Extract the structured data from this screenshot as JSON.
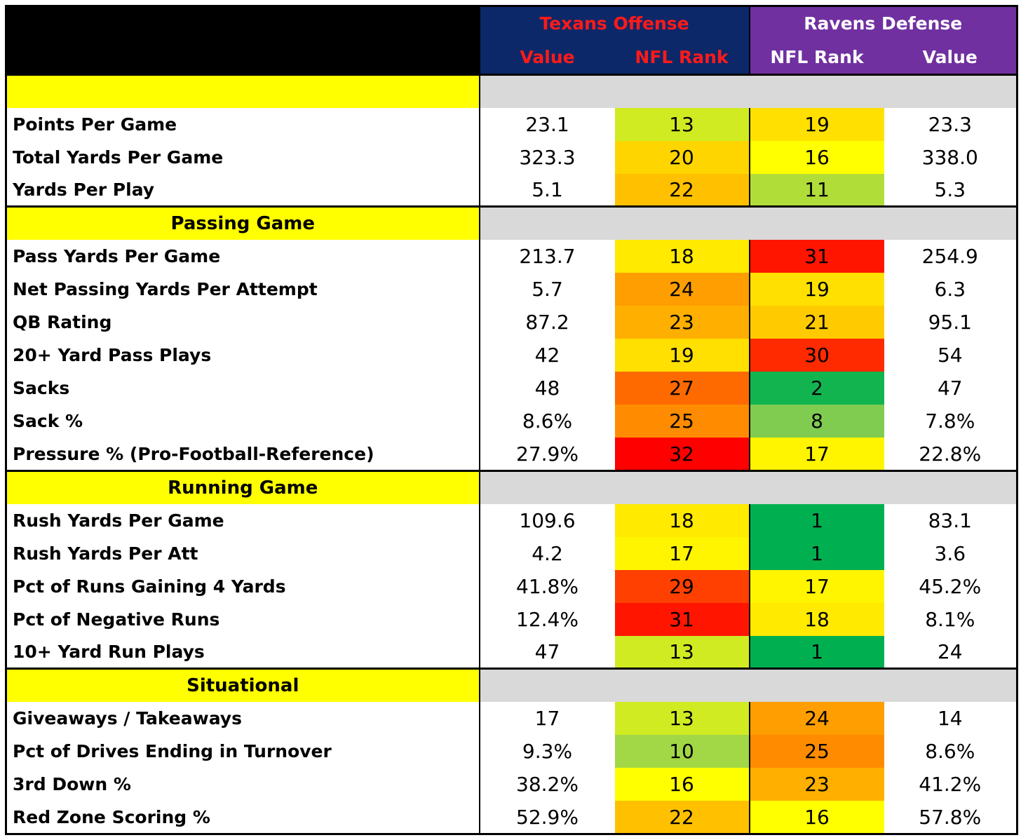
{
  "header": {
    "offense_title": "Texans Offense",
    "defense_title": "Ravens Defense",
    "offense_col1": "Value",
    "offense_col2": "NFL Rank",
    "defense_col1": "NFL Rank",
    "defense_col2": "Value"
  },
  "colors": {
    "header_black": "#000000",
    "offense_header_bg": "#0d2868",
    "offense_header_text": "#ff1a1a",
    "defense_header_bg": "#7030a0",
    "defense_header_text": "#ffffff",
    "section_yellow": "#ffff00",
    "section_gray": "#d9d9d9"
  },
  "chart_data": {
    "type": "table",
    "rank_color_scale": {
      "description": "rank 1 green → rank 32 red",
      "stops": [
        {
          "rank": 1,
          "color": "#00b050"
        },
        {
          "rank": 9,
          "color": "#92d050"
        },
        {
          "rank": 16,
          "color": "#ffff00"
        },
        {
          "rank": 22,
          "color": "#ffc000"
        },
        {
          "rank": 27,
          "color": "#ff6a00"
        },
        {
          "rank": 32,
          "color": "#ff0000"
        }
      ]
    },
    "sections": [
      {
        "title": "",
        "rows": [
          {
            "label": "Points Per Game",
            "off_value": "23.1",
            "off_rank": 13,
            "def_rank": 19,
            "def_value": "23.3"
          },
          {
            "label": "Total Yards Per Game",
            "off_value": "323.3",
            "off_rank": 20,
            "def_rank": 16,
            "def_value": "338.0"
          },
          {
            "label": "Yards Per Play",
            "off_value": "5.1",
            "off_rank": 22,
            "def_rank": 11,
            "def_value": "5.3"
          }
        ]
      },
      {
        "title": "Passing Game",
        "rows": [
          {
            "label": "Pass Yards Per Game",
            "off_value": "213.7",
            "off_rank": 18,
            "def_rank": 31,
            "def_value": "254.9"
          },
          {
            "label": "Net Passing Yards Per Attempt",
            "off_value": "5.7",
            "off_rank": 24,
            "def_rank": 19,
            "def_value": "6.3"
          },
          {
            "label": "QB Rating",
            "off_value": "87.2",
            "off_rank": 23,
            "def_rank": 21,
            "def_value": "95.1"
          },
          {
            "label": "20+ Yard Pass Plays",
            "off_value": "42",
            "off_rank": 19,
            "def_rank": 30,
            "def_value": "54"
          },
          {
            "label": "Sacks",
            "off_value": "48",
            "off_rank": 27,
            "def_rank": 2,
            "def_value": "47"
          },
          {
            "label": "Sack %",
            "off_value": "8.6%",
            "off_rank": 25,
            "def_rank": 8,
            "def_value": "7.8%"
          },
          {
            "label": "Pressure % (Pro-Football-Reference)",
            "off_value": "27.9%",
            "off_rank": 32,
            "def_rank": 17,
            "def_value": "22.8%"
          }
        ]
      },
      {
        "title": "Running Game",
        "rows": [
          {
            "label": "Rush Yards Per Game",
            "off_value": "109.6",
            "off_rank": 18,
            "def_rank": 1,
            "def_value": "83.1"
          },
          {
            "label": "Rush Yards Per Att",
            "off_value": "4.2",
            "off_rank": 17,
            "def_rank": 1,
            "def_value": "3.6"
          },
          {
            "label": "Pct of Runs Gaining 4 Yards",
            "off_value": "41.8%",
            "off_rank": 29,
            "def_rank": 17,
            "def_value": "45.2%"
          },
          {
            "label": "Pct of Negative Runs",
            "off_value": "12.4%",
            "off_rank": 31,
            "def_rank": 18,
            "def_value": "8.1%"
          },
          {
            "label": "10+ Yard Run Plays",
            "off_value": "47",
            "off_rank": 13,
            "def_rank": 1,
            "def_value": "24"
          }
        ]
      },
      {
        "title": "Situational",
        "rows": [
          {
            "label": "Giveaways / Takeaways",
            "off_value": "17",
            "off_rank": 13,
            "def_rank": 24,
            "def_value": "14"
          },
          {
            "label": "Pct of Drives Ending in Turnover",
            "off_value": "9.3%",
            "off_rank": 10,
            "def_rank": 25,
            "def_value": "8.6%"
          },
          {
            "label": "3rd Down %",
            "off_value": "38.2%",
            "off_rank": 16,
            "def_rank": 23,
            "def_value": "41.2%"
          },
          {
            "label": "Red Zone Scoring %",
            "off_value": "52.9%",
            "off_rank": 22,
            "def_rank": 16,
            "def_value": "57.8%"
          }
        ]
      }
    ]
  }
}
